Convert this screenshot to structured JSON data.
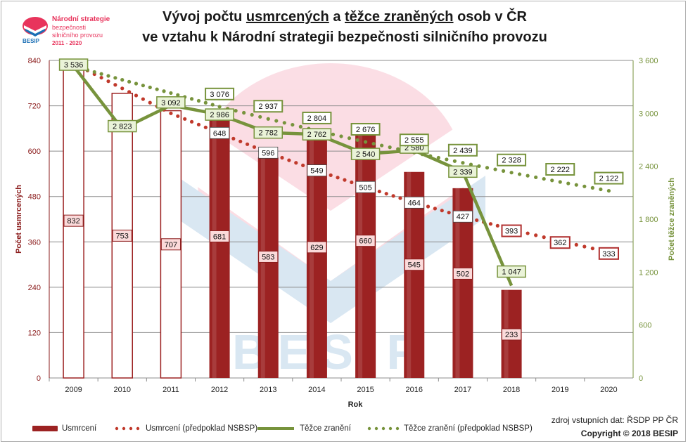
{
  "logo": {
    "line1": "Národní strategie",
    "line2": "bezpečnosti",
    "line3": "silničního provozu",
    "line4": "2011 - 2020",
    "brand": "BESIP"
  },
  "title": {
    "line1_a": "Vývoj počtu ",
    "line1_b": "usmrcených",
    "line1_c": " a ",
    "line1_d": "těžce zraněných",
    "line1_e": " osob v ČR",
    "line2": "ve vztahu k Národní strategii bezpečnosti silničního provozu"
  },
  "watermark": "BESIP",
  "source": "zdroj vstupních dat: ŘSDP PP ČR",
  "copyright": "Copyright © 2018  BESIP",
  "colors": {
    "bar_fill": "#9c2222",
    "bar_hollow_stroke": "#9c2222",
    "deaths_dots": "#c0392b",
    "injured_line": "#77933c",
    "injured_dots": "#77933c",
    "grid": "#8c8c8c"
  },
  "chart_data": {
    "type": "bar",
    "title": "",
    "xlabel": "Rok",
    "ylabel_left": "Počet usmrcených",
    "ylabel_right": "Počet těžce zraněných",
    "ylim_left": [
      0,
      840
    ],
    "ylim_right": [
      0,
      3600
    ],
    "yticks_left": [
      0,
      120,
      240,
      360,
      480,
      600,
      720,
      840
    ],
    "yticks_right": [
      0,
      600,
      1200,
      1800,
      2400,
      3000,
      3600
    ],
    "yticks_right_labels": [
      "0",
      "600",
      "1 200",
      "1 800",
      "2 400",
      "3 000",
      "3 600"
    ],
    "grid": true,
    "legend_position": "bottom",
    "categories": [
      "2009",
      "2010",
      "2011",
      "2012",
      "2013",
      "2014",
      "2015",
      "2016",
      "2017",
      "2018",
      "2019",
      "2020"
    ],
    "series": [
      {
        "name": "Usmrcení",
        "kind": "bar",
        "axis": "left",
        "values": [
          832,
          753,
          707,
          681,
          583,
          629,
          660,
          545,
          502,
          233,
          null,
          null
        ],
        "labels": [
          "832",
          "753",
          "707",
          "681",
          "583",
          "629",
          "660",
          "545",
          "502",
          "233",
          "",
          ""
        ],
        "filled": [
          false,
          false,
          false,
          true,
          true,
          true,
          true,
          true,
          true,
          true,
          false,
          false
        ]
      },
      {
        "name": "Usmrcení (předpoklad NSBSP)",
        "kind": "dotted-line",
        "axis": "left",
        "values": [
          832,
          766,
          700,
          648,
          596,
          549,
          505,
          464,
          427,
          393,
          362,
          333
        ],
        "labels": [
          "",
          "",
          "",
          "648",
          "596",
          "549",
          "505",
          "464",
          "427",
          "393",
          "362",
          "333"
        ]
      },
      {
        "name": "Těžce zranění",
        "kind": "line",
        "axis": "right",
        "values": [
          3536,
          2823,
          3092,
          2986,
          2782,
          2762,
          2540,
          2580,
          2339,
          1047,
          null,
          null
        ],
        "labels": [
          "3 536",
          "2 823",
          "3 092",
          "2 986",
          "2 782",
          "2 762",
          "2 540",
          "2 580",
          "2 339",
          "1 047",
          "",
          ""
        ]
      },
      {
        "name": "Těžce zranění (předpoklad NSBSP)",
        "kind": "dotted-line",
        "axis": "right",
        "values": [
          3536,
          3380,
          3230,
          3076,
          2937,
          2804,
          2676,
          2555,
          2439,
          2328,
          2222,
          2122
        ],
        "labels": [
          "",
          "",
          "",
          "3 076",
          "2 937",
          "2 804",
          "2 676",
          "2 555",
          "2 439",
          "2 328",
          "2 222",
          "2 122"
        ]
      }
    ]
  }
}
